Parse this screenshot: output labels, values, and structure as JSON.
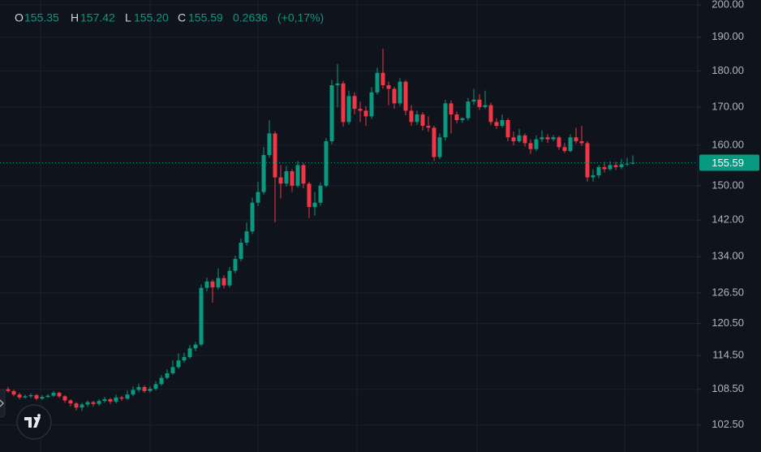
{
  "chart_data": {
    "type": "candlestick",
    "header": [
      {
        "label": "O",
        "value": "155.35"
      },
      {
        "label": "H",
        "value": "157.42"
      },
      {
        "label": "L",
        "value": "155.20"
      },
      {
        "label": "C",
        "value": "155.59"
      }
    ],
    "change": "0.2636",
    "change_pct": "(+0,17%)",
    "last_price": 155.59,
    "up_color": "#089981",
    "down_color": "#f23645",
    "log_scale": true,
    "grid": true,
    "ylim": [
      98.2,
      200
    ],
    "yticks": [
      {
        "value": 102.5,
        "label": "102.50"
      },
      {
        "value": 108.5,
        "label": "108.50"
      },
      {
        "value": 114.5,
        "label": "114.50"
      },
      {
        "value": 120.5,
        "label": "120.50"
      },
      {
        "value": 126.5,
        "label": "126.50"
      },
      {
        "value": 134,
        "label": "134.00"
      },
      {
        "value": 142,
        "label": "142.00"
      },
      {
        "value": 150,
        "label": "150.00"
      },
      {
        "value": 160,
        "label": "160.00"
      },
      {
        "value": 170,
        "label": "170.00"
      },
      {
        "value": 180,
        "label": "180.00"
      },
      {
        "value": 190,
        "label": "190.00"
      },
      {
        "value": 200,
        "label": "200.00"
      }
    ],
    "open": [
      108.5,
      108.2,
      107.6,
      107.1,
      107.3,
      107.5,
      106.9,
      107.2,
      107.4,
      107.9,
      107.3,
      106.6,
      106.1,
      105.4,
      105.9,
      106.3,
      106.0,
      106.5,
      106.8,
      106.4,
      107.1,
      106.9,
      107.6,
      108.4,
      108.9,
      108.2,
      108.6,
      109.4,
      110.5,
      111.3,
      112.4,
      113.6,
      114.2,
      115.8,
      116.5,
      127.5,
      128.8,
      127.6,
      129.5,
      128.0,
      131.0,
      133.5,
      137.0,
      139.5,
      146.0,
      148.5,
      157.5,
      163.0,
      152.0,
      150.5,
      153.5,
      150.0,
      155.0,
      150.5,
      145.0,
      146.0,
      150.0,
      161.0,
      176.0,
      176.5,
      166.0,
      173.0,
      169.5,
      169.0,
      167.5,
      174.0,
      179.5,
      176.0,
      175.0,
      171.0,
      177.0,
      169.0,
      166.0,
      168.0,
      165.0,
      164.5,
      157.0,
      162.0,
      171.0,
      168.0,
      166.5,
      167.0,
      171.5,
      172.0,
      170.0,
      170.5,
      166.0,
      165.0,
      166.5,
      162.0,
      161.0,
      162.5,
      160.5,
      159.0,
      161.5,
      162.0,
      161.5,
      162.0,
      159.5,
      158.5,
      162.0,
      161.0,
      160.5,
      152.0,
      152.5,
      154.5,
      154.0,
      155.0,
      154.5,
      155.2,
      155.35
    ],
    "high": [
      108.9,
      108.4,
      107.9,
      107.6,
      107.8,
      107.7,
      107.5,
      107.7,
      108.2,
      108.1,
      107.5,
      106.8,
      106.3,
      106.2,
      106.6,
      106.5,
      106.8,
      107.2,
      107.0,
      107.6,
      107.4,
      108.3,
      109.0,
      109.5,
      109.2,
      109.0,
      109.9,
      111.0,
      112.0,
      113.6,
      114.9,
      115.0,
      116.4,
      117.0,
      128.2,
      129.6,
      129.2,
      131.5,
      130.1,
      131.8,
      134.2,
      137.9,
      141.5,
      147.2,
      151.0,
      159.5,
      166.5,
      163.6,
      155.0,
      154.8,
      154.0,
      156.0,
      155.6,
      151.0,
      148.5,
      150.8,
      161.8,
      177.5,
      182.0,
      177.2,
      174.5,
      174.0,
      171.5,
      170.2,
      175.5,
      181.0,
      186.5,
      177.0,
      175.6,
      178.0,
      177.5,
      170.5,
      169.0,
      168.6,
      167.5,
      165.0,
      163.0,
      172.0,
      171.8,
      168.8,
      167.2,
      172.5,
      175.0,
      173.5,
      174.5,
      171.2,
      167.0,
      168.0,
      167.0,
      163.5,
      164.2,
      163.0,
      161.5,
      162.5,
      163.8,
      162.8,
      162.6,
      162.4,
      160.5,
      162.8,
      164.5,
      165.0,
      161.0,
      154.0,
      155.0,
      155.8,
      156.0,
      155.8,
      156.5,
      156.8,
      157.42
    ],
    "low": [
      107.9,
      107.3,
      106.8,
      106.9,
      107.0,
      106.6,
      106.7,
      107.0,
      107.2,
      107.0,
      106.2,
      105.6,
      104.9,
      104.8,
      105.5,
      105.6,
      105.7,
      106.2,
      106.0,
      106.1,
      106.5,
      106.7,
      107.3,
      108.0,
      107.9,
      107.9,
      108.3,
      109.1,
      110.2,
      111.0,
      112.1,
      113.2,
      113.9,
      115.3,
      116.2,
      126.8,
      124.5,
      127.2,
      127.4,
      127.6,
      130.5,
      133.0,
      136.4,
      138.9,
      145.2,
      147.9,
      156.8,
      141.5,
      147.0,
      149.8,
      148.5,
      149.5,
      149.4,
      142.5,
      143.0,
      145.3,
      149.6,
      160.2,
      170.0,
      164.8,
      165.3,
      168.0,
      166.0,
      165.0,
      166.8,
      173.4,
      175.0,
      170.5,
      169.5,
      170.3,
      167.8,
      165.0,
      165.2,
      163.8,
      163.5,
      156.0,
      156.5,
      161.2,
      163.0,
      165.6,
      165.8,
      166.4,
      170.6,
      169.2,
      169.5,
      165.2,
      164.2,
      164.5,
      161.0,
      160.0,
      160.6,
      159.6,
      157.8,
      158.5,
      160.8,
      160.5,
      161.0,
      158.8,
      158.0,
      158.2,
      160.4,
      159.8,
      151.0,
      151.0,
      151.8,
      153.2,
      153.6,
      153.8,
      154.0,
      154.8,
      155.2
    ],
    "close": [
      108.2,
      107.6,
      107.1,
      107.3,
      107.5,
      106.9,
      107.2,
      107.4,
      107.9,
      107.3,
      106.6,
      106.1,
      105.4,
      105.9,
      106.3,
      106.0,
      106.5,
      106.8,
      106.4,
      107.1,
      106.9,
      107.6,
      108.4,
      108.9,
      108.2,
      108.6,
      109.4,
      110.5,
      111.3,
      112.4,
      113.6,
      114.2,
      115.8,
      116.5,
      127.5,
      128.8,
      127.6,
      129.5,
      128.0,
      131.0,
      133.5,
      137.0,
      139.5,
      146.0,
      148.5,
      157.5,
      163.0,
      152.0,
      150.5,
      153.5,
      150.0,
      155.0,
      150.5,
      145.0,
      146.0,
      150.0,
      161.0,
      176.0,
      176.5,
      166.0,
      173.0,
      169.5,
      169.0,
      167.5,
      174.0,
      179.5,
      176.0,
      175.0,
      171.0,
      177.0,
      169.0,
      166.0,
      168.0,
      165.0,
      164.5,
      157.0,
      162.0,
      171.0,
      168.0,
      166.5,
      167.0,
      171.5,
      172.0,
      170.0,
      170.5,
      166.0,
      165.0,
      166.5,
      162.0,
      161.0,
      162.5,
      160.5,
      159.0,
      161.5,
      162.0,
      161.5,
      162.0,
      159.5,
      158.5,
      162.0,
      161.0,
      160.5,
      152.0,
      152.5,
      154.5,
      154.0,
      155.0,
      154.5,
      155.2,
      155.35,
      155.59
    ]
  }
}
